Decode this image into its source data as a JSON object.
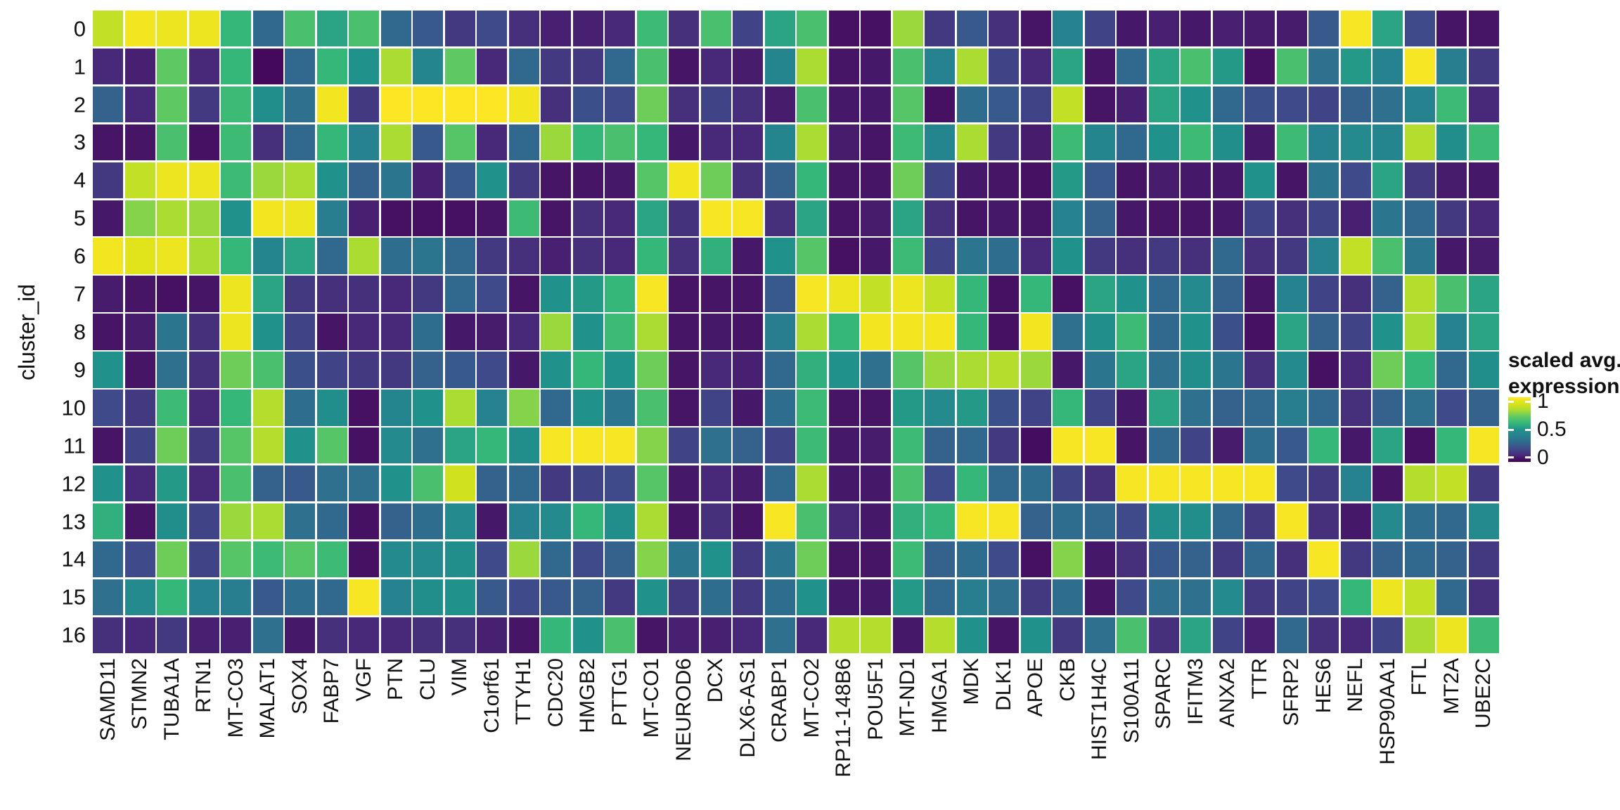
{
  "chart_data": {
    "type": "heatmap",
    "title": "",
    "xlabel": "",
    "ylabel": "cluster_id",
    "colormap": "viridis",
    "value_range": [
      0,
      1
    ],
    "grid": "off",
    "legend_position": "right",
    "x_categories": [
      "SAMD11",
      "STMN2",
      "TUBA1A",
      "RTN1",
      "MT-CO3",
      "MALAT1",
      "SOX4",
      "FABP7",
      "VGF",
      "PTN",
      "CLU",
      "VIM",
      "C1orf61",
      "TTYH1",
      "CDC20",
      "HMGB2",
      "PTTG1",
      "MT-CO1",
      "NEUROD6",
      "DCX",
      "DLX6-AS1",
      "CRABP1",
      "MT-CO2",
      "RP11-148B6",
      "POU5F1",
      "MT-ND1",
      "HMGA1",
      "MDK",
      "DLK1",
      "APOE",
      "CKB",
      "HIST1H4C",
      "S100A11",
      "SPARC",
      "IFITM3",
      "ANXA2",
      "TTR",
      "SFRP2",
      "HES6",
      "NEFL",
      "HSP90AA1",
      "FTL",
      "MT2A",
      "UBE2C"
    ],
    "y_categories": [
      "0",
      "1",
      "2",
      "3",
      "4",
      "5",
      "6",
      "7",
      "8",
      "9",
      "10",
      "11",
      "12",
      "13",
      "14",
      "15",
      "16"
    ],
    "values": [
      [
        0.85,
        0.97,
        0.95,
        0.95,
        0.6,
        0.3,
        0.65,
        0.55,
        0.65,
        0.3,
        0.25,
        0.15,
        0.2,
        0.12,
        0.08,
        0.08,
        0.1,
        0.62,
        0.12,
        0.65,
        0.18,
        0.55,
        0.65,
        0.04,
        0.04,
        0.78,
        0.15,
        0.25,
        0.12,
        0.05,
        0.4,
        0.18,
        0.06,
        0.08,
        0.06,
        0.08,
        0.07,
        0.07,
        0.25,
        0.98,
        0.55,
        0.2,
        0.05,
        0.05
      ],
      [
        0.1,
        0.08,
        0.7,
        0.1,
        0.6,
        0.02,
        0.3,
        0.6,
        0.5,
        0.8,
        0.42,
        0.7,
        0.1,
        0.3,
        0.15,
        0.15,
        0.3,
        0.65,
        0.05,
        0.1,
        0.07,
        0.42,
        0.8,
        0.05,
        0.06,
        0.65,
        0.4,
        0.8,
        0.18,
        0.1,
        0.55,
        0.05,
        0.3,
        0.55,
        0.65,
        0.52,
        0.04,
        0.65,
        0.33,
        0.52,
        0.4,
        0.98,
        0.38,
        0.15
      ],
      [
        0.28,
        0.1,
        0.7,
        0.15,
        0.62,
        0.48,
        0.33,
        0.97,
        0.15,
        1.0,
        1.0,
        1.0,
        1.0,
        0.97,
        0.12,
        0.22,
        0.2,
        0.72,
        0.12,
        0.18,
        0.12,
        0.07,
        0.65,
        0.06,
        0.06,
        0.68,
        0.04,
        0.32,
        0.25,
        0.18,
        0.85,
        0.05,
        0.08,
        0.55,
        0.5,
        0.3,
        0.22,
        0.2,
        0.18,
        0.28,
        0.33,
        0.4,
        0.62,
        0.1
      ],
      [
        0.05,
        0.05,
        0.65,
        0.04,
        0.62,
        0.12,
        0.3,
        0.6,
        0.4,
        0.8,
        0.25,
        0.68,
        0.1,
        0.3,
        0.78,
        0.6,
        0.65,
        0.6,
        0.06,
        0.1,
        0.1,
        0.42,
        0.8,
        0.07,
        0.05,
        0.62,
        0.42,
        0.8,
        0.15,
        0.07,
        0.62,
        0.42,
        0.3,
        0.5,
        0.62,
        0.48,
        0.06,
        0.62,
        0.4,
        0.45,
        0.42,
        0.82,
        0.48,
        0.62
      ],
      [
        0.15,
        0.85,
        0.95,
        0.95,
        0.62,
        0.78,
        0.8,
        0.5,
        0.28,
        0.35,
        0.08,
        0.25,
        0.5,
        0.15,
        0.05,
        0.05,
        0.06,
        0.68,
        0.97,
        0.72,
        0.12,
        0.28,
        0.6,
        0.05,
        0.05,
        0.72,
        0.18,
        0.06,
        0.05,
        0.04,
        0.52,
        0.25,
        0.05,
        0.07,
        0.06,
        0.06,
        0.5,
        0.05,
        0.35,
        0.2,
        0.55,
        0.15,
        0.07,
        0.06
      ],
      [
        0.06,
        0.75,
        0.8,
        0.78,
        0.5,
        0.97,
        0.95,
        0.38,
        0.08,
        0.04,
        0.04,
        0.04,
        0.05,
        0.62,
        0.05,
        0.12,
        0.1,
        0.55,
        0.13,
        0.98,
        0.98,
        0.12,
        0.55,
        0.05,
        0.07,
        0.55,
        0.12,
        0.05,
        0.06,
        0.05,
        0.4,
        0.28,
        0.06,
        0.05,
        0.05,
        0.06,
        0.18,
        0.12,
        0.18,
        0.08,
        0.35,
        0.3,
        0.15,
        0.1
      ],
      [
        0.97,
        0.92,
        0.95,
        0.8,
        0.6,
        0.42,
        0.55,
        0.3,
        0.8,
        0.32,
        0.35,
        0.3,
        0.15,
        0.12,
        0.08,
        0.12,
        0.1,
        0.6,
        0.12,
        0.58,
        0.06,
        0.5,
        0.68,
        0.04,
        0.06,
        0.62,
        0.18,
        0.35,
        0.32,
        0.1,
        0.5,
        0.15,
        0.12,
        0.15,
        0.12,
        0.3,
        0.12,
        0.15,
        0.4,
        0.85,
        0.65,
        0.35,
        0.06,
        0.07
      ],
      [
        0.07,
        0.05,
        0.04,
        0.05,
        0.95,
        0.55,
        0.15,
        0.12,
        0.12,
        0.1,
        0.15,
        0.3,
        0.2,
        0.05,
        0.5,
        0.52,
        0.6,
        0.98,
        0.05,
        0.05,
        0.05,
        0.25,
        0.98,
        0.95,
        0.85,
        0.95,
        0.85,
        0.6,
        0.04,
        0.6,
        0.04,
        0.55,
        0.5,
        0.3,
        0.45,
        0.28,
        0.05,
        0.4,
        0.18,
        0.12,
        0.28,
        0.82,
        0.65,
        0.55
      ],
      [
        0.05,
        0.07,
        0.35,
        0.12,
        0.95,
        0.5,
        0.18,
        0.05,
        0.1,
        0.1,
        0.32,
        0.06,
        0.07,
        0.1,
        0.78,
        0.5,
        0.62,
        0.8,
        0.05,
        0.06,
        0.05,
        0.38,
        0.8,
        0.6,
        0.97,
        0.97,
        0.97,
        0.6,
        0.04,
        0.97,
        0.33,
        0.48,
        0.62,
        0.3,
        0.5,
        0.22,
        0.04,
        0.55,
        0.28,
        0.18,
        0.5,
        0.8,
        0.4,
        0.55
      ],
      [
        0.5,
        0.05,
        0.33,
        0.12,
        0.72,
        0.65,
        0.22,
        0.18,
        0.15,
        0.15,
        0.28,
        0.25,
        0.2,
        0.06,
        0.5,
        0.6,
        0.5,
        0.72,
        0.05,
        0.1,
        0.08,
        0.3,
        0.58,
        0.5,
        0.33,
        0.68,
        0.78,
        0.8,
        0.82,
        0.78,
        0.06,
        0.35,
        0.55,
        0.33,
        0.48,
        0.35,
        0.12,
        0.45,
        0.04,
        0.1,
        0.72,
        0.6,
        0.3,
        0.48
      ],
      [
        0.2,
        0.15,
        0.62,
        0.1,
        0.6,
        0.82,
        0.32,
        0.48,
        0.04,
        0.42,
        0.5,
        0.8,
        0.4,
        0.75,
        0.3,
        0.5,
        0.35,
        0.65,
        0.05,
        0.18,
        0.06,
        0.32,
        0.62,
        0.05,
        0.05,
        0.52,
        0.45,
        0.52,
        0.22,
        0.18,
        0.6,
        0.18,
        0.06,
        0.55,
        0.33,
        0.28,
        0.3,
        0.38,
        0.3,
        0.12,
        0.28,
        0.33,
        0.2,
        0.28
      ],
      [
        0.05,
        0.18,
        0.72,
        0.15,
        0.68,
        0.82,
        0.5,
        0.68,
        0.04,
        0.45,
        0.33,
        0.55,
        0.6,
        0.48,
        0.98,
        0.98,
        0.98,
        0.75,
        0.18,
        0.33,
        0.28,
        0.18,
        0.62,
        0.06,
        0.07,
        0.62,
        0.28,
        0.3,
        0.15,
        0.03,
        0.98,
        0.98,
        0.05,
        0.3,
        0.18,
        0.07,
        0.32,
        0.25,
        0.6,
        0.06,
        0.55,
        0.04,
        0.6,
        0.98
      ],
      [
        0.5,
        0.1,
        0.52,
        0.1,
        0.65,
        0.28,
        0.25,
        0.33,
        0.33,
        0.5,
        0.65,
        0.88,
        0.28,
        0.3,
        0.15,
        0.18,
        0.2,
        0.68,
        0.06,
        0.1,
        0.07,
        0.3,
        0.8,
        0.06,
        0.06,
        0.65,
        0.2,
        0.6,
        0.3,
        0.32,
        0.18,
        0.12,
        0.98,
        0.98,
        0.98,
        0.98,
        0.98,
        0.2,
        0.15,
        0.4,
        0.05,
        0.82,
        0.85,
        0.15
      ],
      [
        0.58,
        0.05,
        0.48,
        0.18,
        0.78,
        0.8,
        0.33,
        0.3,
        0.04,
        0.28,
        0.32,
        0.45,
        0.06,
        0.4,
        0.45,
        0.6,
        0.48,
        0.8,
        0.05,
        0.12,
        0.05,
        0.98,
        0.65,
        0.1,
        0.06,
        0.58,
        0.6,
        0.98,
        0.98,
        0.28,
        0.32,
        0.3,
        0.2,
        0.48,
        0.48,
        0.3,
        0.15,
        0.98,
        0.12,
        0.06,
        0.45,
        0.32,
        0.3,
        0.45
      ],
      [
        0.3,
        0.2,
        0.72,
        0.18,
        0.68,
        0.62,
        0.68,
        0.62,
        0.04,
        0.45,
        0.45,
        0.48,
        0.2,
        0.78,
        0.3,
        0.2,
        0.28,
        0.75,
        0.35,
        0.5,
        0.15,
        0.35,
        0.72,
        0.05,
        0.05,
        0.62,
        0.28,
        0.32,
        0.2,
        0.04,
        0.75,
        0.06,
        0.12,
        0.25,
        0.28,
        0.15,
        0.3,
        0.12,
        0.98,
        0.15,
        0.28,
        0.3,
        0.28,
        0.15
      ],
      [
        0.33,
        0.45,
        0.6,
        0.4,
        0.38,
        0.25,
        0.32,
        0.3,
        0.98,
        0.4,
        0.48,
        0.5,
        0.25,
        0.2,
        0.25,
        0.28,
        0.15,
        0.5,
        0.15,
        0.32,
        0.15,
        0.32,
        0.5,
        0.06,
        0.06,
        0.52,
        0.3,
        0.38,
        0.33,
        0.15,
        0.32,
        0.05,
        0.2,
        0.33,
        0.33,
        0.45,
        0.15,
        0.18,
        0.2,
        0.6,
        0.95,
        0.85,
        0.3,
        0.12
      ],
      [
        0.12,
        0.1,
        0.15,
        0.08,
        0.08,
        0.33,
        0.06,
        0.12,
        0.1,
        0.1,
        0.12,
        0.12,
        0.08,
        0.05,
        0.6,
        0.5,
        0.65,
        0.05,
        0.08,
        0.08,
        0.1,
        0.33,
        0.1,
        0.82,
        0.82,
        0.06,
        0.82,
        0.5,
        0.05,
        0.5,
        0.15,
        0.33,
        0.65,
        0.12,
        0.55,
        0.18,
        0.08,
        0.3,
        0.12,
        0.1,
        0.18,
        0.8,
        0.95,
        0.62
      ]
    ],
    "legend": {
      "title_lines": [
        "scaled avg.",
        "expression"
      ],
      "ticks": [
        "1",
        "0.5",
        "0"
      ],
      "tick_values": [
        1,
        0.5,
        0
      ]
    }
  },
  "colors": {
    "background": "#ffffff",
    "cell_gap": "#ffffff",
    "text": "#111111",
    "viridis_stops": [
      "#440154",
      "#482878",
      "#3e4a89",
      "#31688e",
      "#26828e",
      "#21918c",
      "#35b779",
      "#5ec962",
      "#aadc32",
      "#dae319",
      "#fde725"
    ]
  }
}
